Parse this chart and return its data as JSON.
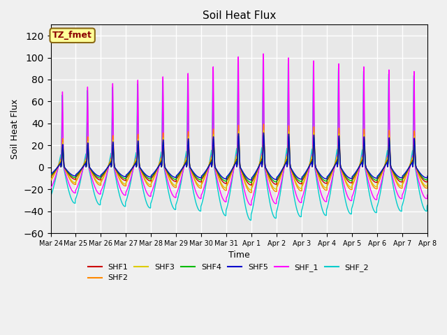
{
  "title": "Soil Heat Flux",
  "xlabel": "Time",
  "ylabel": "Soil Heat Flux",
  "ylim": [
    -60,
    130
  ],
  "yticks": [
    -60,
    -40,
    -20,
    0,
    20,
    40,
    60,
    80,
    100,
    120
  ],
  "annotation_text": "TZ_fmet",
  "annotation_bg": "#ffff99",
  "annotation_border": "#8B6914",
  "series_colors": {
    "SHF1": "#cc0000",
    "SHF2": "#ff8800",
    "SHF3": "#ddcc00",
    "SHF4": "#00bb00",
    "SHF5": "#0000cc",
    "SHF_1": "#ff00ff",
    "SHF_2": "#00cccc"
  },
  "plot_bg": "#e8e8e8",
  "grid_color": "#ffffff",
  "tick_labels": [
    "Mar 24",
    "Mar 25",
    "Mar 26",
    "Mar 27",
    "Mar 28",
    "Mar 29",
    "Mar 30",
    "Mar 31",
    "Apr 1",
    "Apr 2",
    "Apr 3",
    "Apr 4",
    "Apr 5",
    "Apr 6",
    "Apr 7",
    "Apr 8"
  ]
}
